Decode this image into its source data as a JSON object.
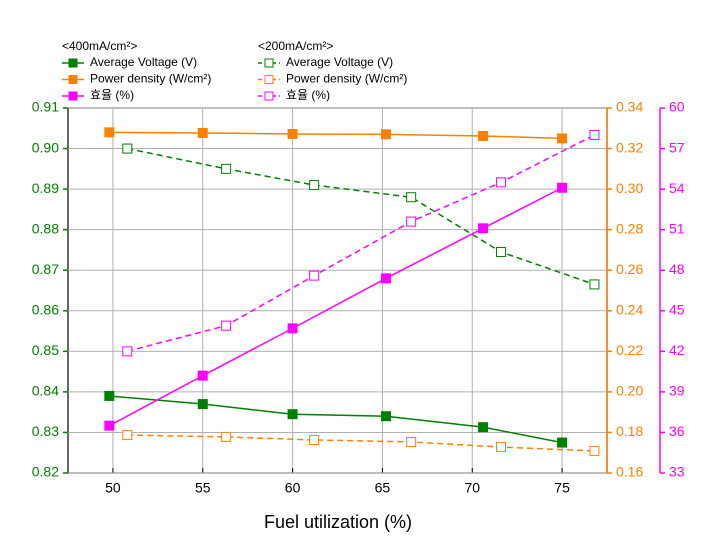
{
  "chart_data": {
    "type": "line",
    "xlabel": "Fuel utilization (%)",
    "xlim": [
      47.5,
      77.5
    ],
    "xticks": [
      50,
      55,
      60,
      65,
      70,
      75
    ],
    "ylim": [
      0.82,
      0.91
    ],
    "yticks": [
      0.82,
      0.83,
      0.84,
      0.85,
      0.86,
      0.87,
      0.88,
      0.89,
      {
        "value": 0.9,
        "label": "0.90"
      },
      0.91
    ],
    "ycolor": "#008000",
    "y2lim": [
      0.16,
      0.34
    ],
    "y2ticks": [
      0.16,
      0.18,
      {
        "value": 0.2,
        "label": "0.20"
      },
      0.22,
      0.24,
      0.26,
      0.28,
      {
        "value": 0.3,
        "label": "0.30"
      },
      0.32,
      0.34
    ],
    "y2color": "#ff8000",
    "y3lim": [
      33,
      60
    ],
    "y3ticks": [
      33,
      36,
      39,
      42,
      45,
      48,
      51,
      54,
      57,
      60
    ],
    "y3color": "#ff00ff",
    "grid": true,
    "legend_groups": [
      "<400mA/cm²>",
      "<200mA/cm²>"
    ],
    "series": [
      {
        "name": "Average Voltage (V)",
        "group": 0,
        "axis": "y",
        "color": "#008000",
        "dashed": false,
        "filled": true,
        "x": [
          49.8,
          55.0,
          60.0,
          65.2,
          70.6,
          75.0
        ],
        "values": [
          0.839,
          0.837,
          0.8345,
          0.834,
          0.8313,
          0.8275
        ]
      },
      {
        "name": "Power density (W/cm²)",
        "group": 0,
        "axis": "y2",
        "color": "#ff8000",
        "dashed": false,
        "filled": true,
        "x": [
          49.8,
          55.0,
          60.0,
          65.2,
          70.6,
          75.0
        ],
        "values": [
          0.328,
          0.3277,
          0.3272,
          0.327,
          0.3262,
          0.325
        ]
      },
      {
        "name": "효율 (%)",
        "group": 0,
        "axis": "y3",
        "color": "#ff00ff",
        "dashed": false,
        "filled": true,
        "x": [
          49.8,
          55.0,
          60.0,
          65.2,
          70.6,
          75.0
        ],
        "values": [
          36.5,
          40.2,
          43.7,
          47.4,
          51.1,
          54.1
        ]
      },
      {
        "name": "Average Voltage (V)",
        "group": 1,
        "axis": "y",
        "color": "#008000",
        "dashed": true,
        "filled": false,
        "x": [
          50.8,
          56.3,
          61.2,
          66.6,
          71.6,
          76.8
        ],
        "values": [
          0.9,
          0.895,
          0.891,
          0.888,
          0.8745,
          0.8665
        ]
      },
      {
        "name": "Power density (W/cm²)",
        "group": 1,
        "axis": "y2",
        "color": "#ff8000",
        "dashed": true,
        "filled": false,
        "x": [
          50.8,
          56.3,
          61.2,
          66.6,
          71.6,
          76.8
        ],
        "values": [
          0.1787,
          0.1778,
          0.1763,
          0.1753,
          0.1728,
          0.1709
        ]
      },
      {
        "name": "효율 (%)",
        "group": 1,
        "axis": "y3",
        "color": "#ff00ff",
        "dashed": true,
        "filled": false,
        "x": [
          50.8,
          56.3,
          61.2,
          66.6,
          71.6,
          76.8
        ],
        "values": [
          42.0,
          43.9,
          47.6,
          51.6,
          54.5,
          58.0
        ]
      }
    ]
  }
}
